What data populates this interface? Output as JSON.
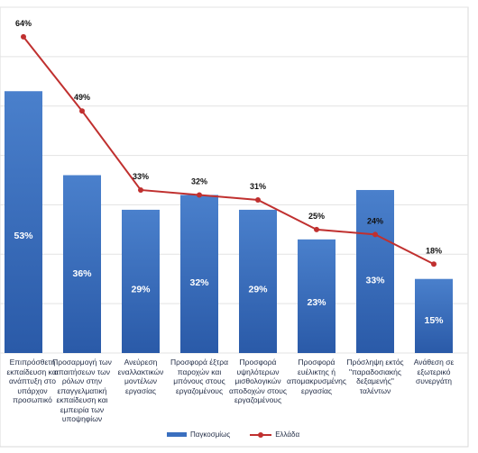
{
  "chart_data": {
    "type": "bar",
    "categories": [
      "Επιπρόσθετη εκπαίδευση και ανάπτυξη στο υπάρχον προσωπικό",
      "Προσαρμογή των απαιτήσεων των ρόλων στην επαγγελματική εκπαίδευση και εμπειρία των υποψηφίων",
      "Ανεύρεση εναλλακτικών μοντέλων εργασίας",
      "Προσφορά έξτρα παροχών και μπόνους στους εργαζομένους",
      "Προσφορά υψηλότερων μισθολογικών αποδοχών στους εργαζομένους",
      "Προσφορά ευέλικτης ή απομακρυσμένης εργασίας",
      "Πρόσληψη εκτός \"παραδοσιακής δεξαμενής\" ταλέντων",
      "Ανάθεση σε εξωτερικό συνεργάτη"
    ],
    "series": [
      {
        "name": "Παγκοσμίως",
        "type": "bar",
        "values": [
          53,
          36,
          29,
          32,
          29,
          23,
          33,
          15
        ],
        "labels": [
          "53%",
          "36%",
          "29%",
          "32%",
          "29%",
          "23%",
          "33%",
          "15%"
        ],
        "color": "#3a6fbf"
      },
      {
        "name": "Ελλάδα",
        "type": "line",
        "values": [
          64,
          49,
          33,
          32,
          31,
          25,
          24,
          18
        ],
        "labels": [
          "64%",
          "49%",
          "33%",
          "32%",
          "31%",
          "25%",
          "24%",
          "18%"
        ],
        "color": "#c0302f"
      }
    ],
    "ylim": [
      0,
      70
    ],
    "grid": true,
    "legend": "bottom"
  }
}
